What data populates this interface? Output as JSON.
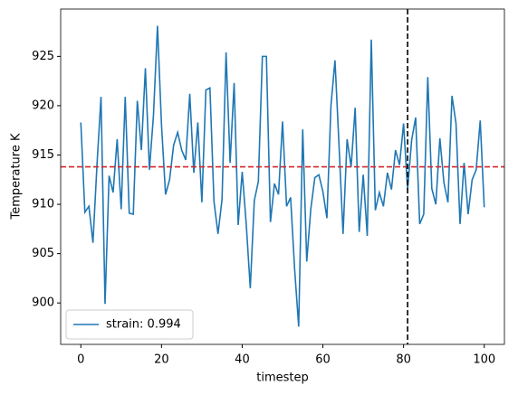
{
  "chart_data": {
    "type": "line",
    "x_label": "timestep",
    "y_label": "Temperature K",
    "x": [
      0,
      1,
      2,
      3,
      4,
      5,
      6,
      7,
      8,
      9,
      10,
      11,
      12,
      13,
      14,
      15,
      16,
      17,
      18,
      19,
      20,
      21,
      22,
      23,
      24,
      25,
      26,
      27,
      28,
      29,
      30,
      31,
      32,
      33,
      34,
      35,
      36,
      37,
      38,
      39,
      40,
      41,
      42,
      43,
      44,
      45,
      46,
      47,
      48,
      49,
      50,
      51,
      52,
      53,
      54,
      55,
      56,
      57,
      58,
      59,
      60,
      61,
      62,
      63,
      64,
      65,
      66,
      67,
      68,
      69,
      70,
      71,
      72,
      73,
      74,
      75,
      76,
      77,
      78,
      79,
      80,
      81,
      82,
      83,
      84,
      85,
      86,
      87,
      88,
      89,
      90,
      91,
      92,
      93,
      94,
      95,
      96,
      97,
      98,
      99,
      100
    ],
    "series": [
      {
        "name": "strain: 0.994",
        "color": "#1f77b4",
        "values": [
          918.3,
          909.2,
          909.8,
          906.1,
          914,
          920.9,
          899.9,
          912.9,
          911.2,
          916.6,
          909.5,
          920.9,
          909.1,
          909.0,
          920.5,
          915.5,
          923.8,
          913.5,
          919,
          928.1,
          918,
          911,
          912.5,
          916,
          917.3,
          915.5,
          914.5,
          921.2,
          913.2,
          918.3,
          910.2,
          921.6,
          921.8,
          910.3,
          907,
          910.5,
          925.4,
          914.2,
          922.3,
          907.9,
          913.3,
          908,
          901.5,
          910.4,
          912.3,
          925,
          925,
          908.2,
          912.1,
          911,
          918.4,
          909.8,
          910.7,
          903.4,
          897.6,
          917.6,
          904.2,
          909.5,
          912.7,
          913,
          911.3,
          908.6,
          920,
          924.6,
          916,
          907,
          916.6,
          913.8,
          919.8,
          907.2,
          913,
          906.8,
          926.7,
          909.4,
          911.2,
          909.8,
          913.2,
          911.5,
          915.5,
          914,
          918.2,
          911.5,
          916.5,
          918.8,
          908,
          909,
          922.9,
          911.6,
          910,
          916.7,
          912.2,
          910.2,
          921,
          918.2,
          908,
          914.2,
          909,
          912.5,
          913.5,
          918.5,
          909.7
        ]
      }
    ],
    "hline": {
      "value": 913.8,
      "color": "#d62728"
    },
    "vline": {
      "value": 81,
      "color": "#000000"
    },
    "xlim": [
      -5,
      105
    ],
    "ylim": [
      895.8,
      929.8
    ],
    "xticks": [
      0,
      20,
      40,
      60,
      80,
      100
    ],
    "yticks": [
      900,
      905,
      910,
      915,
      920,
      925
    ],
    "grid": false,
    "legend": "lower left"
  }
}
